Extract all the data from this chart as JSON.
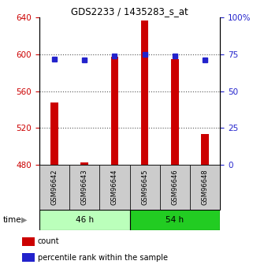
{
  "title": "GDS2233 / 1435283_s_at",
  "samples": [
    "GSM96642",
    "GSM96643",
    "GSM96644",
    "GSM96645",
    "GSM96646",
    "GSM96648"
  ],
  "count_values": [
    548,
    482,
    597,
    637,
    595,
    513
  ],
  "percentile_values": [
    72,
    71,
    74,
    75,
    74,
    71
  ],
  "ylim_left": [
    480,
    640
  ],
  "ylim_right": [
    0,
    100
  ],
  "yticks_left": [
    480,
    520,
    560,
    600,
    640
  ],
  "yticks_right": [
    0,
    25,
    50,
    75,
    100
  ],
  "ytick_labels_right": [
    "0",
    "25",
    "50",
    "75",
    "100%"
  ],
  "bar_color": "#cc0000",
  "dot_color": "#2222cc",
  "bar_bottom": 480,
  "groups": [
    {
      "label": "46 h",
      "indices": [
        0,
        1,
        2
      ],
      "light_color": "#bbffbb",
      "dark_color": "#44dd44"
    },
    {
      "label": "54 h",
      "indices": [
        3,
        4,
        5
      ],
      "light_color": "#44ee44",
      "dark_color": "#22cc22"
    }
  ],
  "legend_count_label": "count",
  "legend_pct_label": "percentile rank within the sample",
  "grid_color": "#555555",
  "sample_box_color": "#cccccc",
  "left_tick_color": "#cc0000",
  "right_tick_color": "#2222cc",
  "bar_width": 0.25
}
